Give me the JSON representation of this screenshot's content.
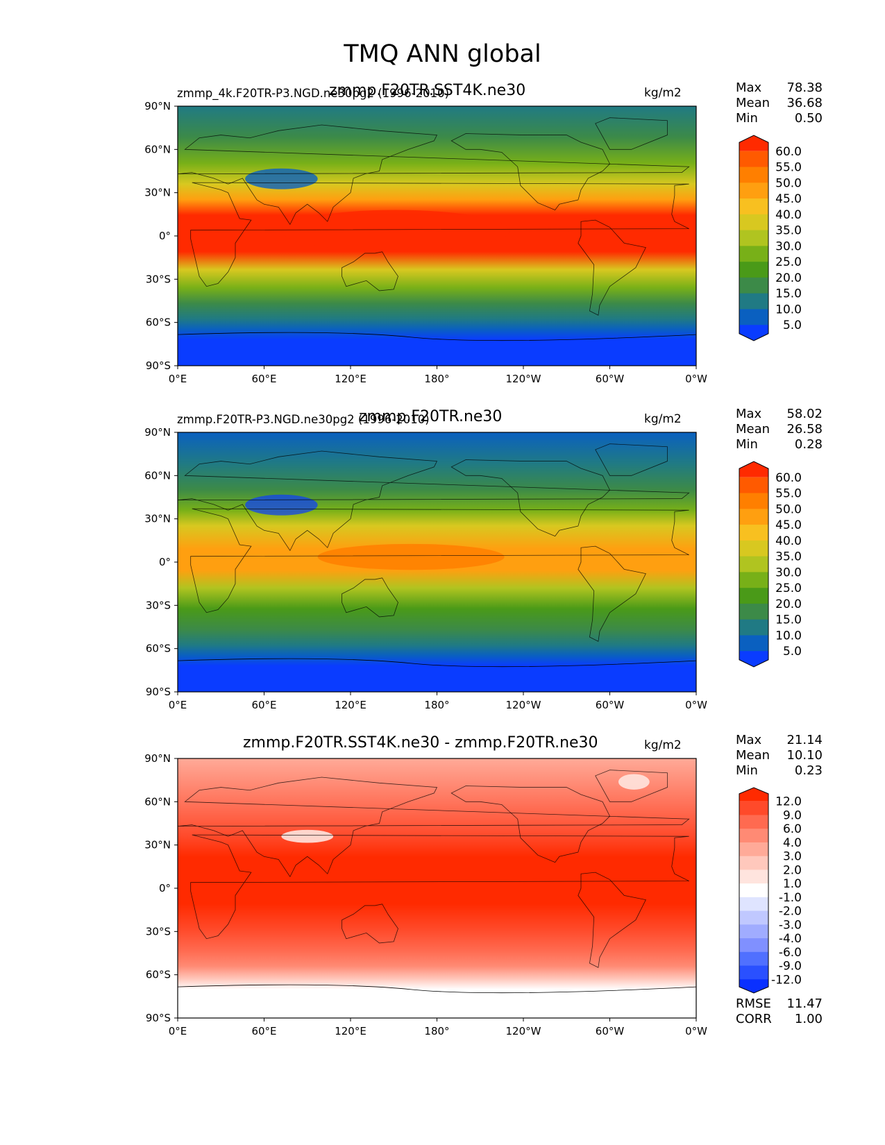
{
  "title": "TMQ ANN global",
  "panels": [
    {
      "id": "test",
      "small_title": "zmmp_4k.F20TR-P3.NGD.ne30pg2 (1996-2010)",
      "main_title": "zmmp.F20TR.SST4K.ne30",
      "units": "kg/m2",
      "stats": {
        "max_label": "Max",
        "max": "78.38",
        "mean_label": "Mean",
        "mean": "36.68",
        "min_label": "Min",
        "min": "0.50"
      },
      "colorbar": {
        "levels": [
          "60.0",
          "55.0",
          "50.0",
          "45.0",
          "40.0",
          "35.0",
          "30.0",
          "25.0",
          "20.0",
          "15.0",
          "10.0",
          "5.0"
        ],
        "colors": [
          "#ff2a00",
          "#ff5a00",
          "#ff7f00",
          "#ff9f10",
          "#f8c020",
          "#d8c820",
          "#b0c420",
          "#78b018",
          "#4a9a18",
          "#3c8a48",
          "#207a84",
          "#0a60c0",
          "#0a3cff"
        ]
      }
    },
    {
      "id": "ref",
      "small_title": "zmmp.F20TR-P3.NGD.ne30pg2 (1996-2010)",
      "main_title": "zmmp.F20TR.ne30",
      "units": "kg/m2",
      "stats": {
        "max_label": "Max",
        "max": "58.02",
        "mean_label": "Mean",
        "mean": "26.58",
        "min_label": "Min",
        "min": "0.28"
      },
      "colorbar": {
        "levels": [
          "60.0",
          "55.0",
          "50.0",
          "45.0",
          "40.0",
          "35.0",
          "30.0",
          "25.0",
          "20.0",
          "15.0",
          "10.0",
          "5.0"
        ],
        "colors": [
          "#ff2a00",
          "#ff5a00",
          "#ff7f00",
          "#ff9f10",
          "#f8c020",
          "#d8c820",
          "#b0c420",
          "#78b018",
          "#4a9a18",
          "#3c8a48",
          "#207a84",
          "#0a60c0",
          "#0a3cff"
        ]
      }
    },
    {
      "id": "diff",
      "small_title": "",
      "main_title": "zmmp.F20TR.SST4K.ne30 - zmmp.F20TR.ne30",
      "units": "kg/m2",
      "stats": {
        "max_label": "Max",
        "max": "21.14",
        "mean_label": "Mean",
        "mean": "10.10",
        "min_label": "Min",
        "min": "0.23"
      },
      "colorbar": {
        "levels": [
          "12.0",
          "9.0",
          "6.0",
          "4.0",
          "3.0",
          "2.0",
          "1.0",
          "-1.0",
          "-2.0",
          "-3.0",
          "-4.0",
          "-6.0",
          "-9.0",
          "-12.0"
        ],
        "colors": [
          "#ff2a00",
          "#ff4a2a",
          "#ff6a50",
          "#ff8a74",
          "#ffaa98",
          "#ffc8bc",
          "#ffe4de",
          "#ffffff",
          "#dfe4ff",
          "#c0c8ff",
          "#a0acff",
          "#8090ff",
          "#5070ff",
          "#2a50ff",
          "#0a30ff"
        ]
      }
    }
  ],
  "error_stats": {
    "rmse_label": "RMSE",
    "rmse": "11.47",
    "corr_label": "CORR",
    "corr": "1.00"
  },
  "axes": {
    "lat_ticks": [
      "90°N",
      "60°N",
      "30°N",
      "0°",
      "30°S",
      "60°S",
      "90°S"
    ],
    "lon_ticks": [
      "0°E",
      "60°E",
      "120°E",
      "180°",
      "120°W",
      "60°W",
      "0°W"
    ]
  },
  "chart_data": [
    {
      "type": "heatmap",
      "title": "zmmp.F20TR.SST4K.ne30",
      "variable": "TMQ",
      "season": "ANN",
      "units": "kg/m2",
      "stats": {
        "max": 78.38,
        "mean": 36.68,
        "min": 0.5
      },
      "zonal_profile": {
        "lat": [
          90,
          60,
          30,
          0,
          -30,
          -60,
          -90
        ],
        "value": [
          8,
          22,
          40,
          58,
          35,
          15,
          2
        ]
      },
      "contour_levels": [
        5,
        10,
        15,
        20,
        25,
        30,
        35,
        40,
        45,
        50,
        55,
        60
      ]
    },
    {
      "type": "heatmap",
      "title": "zmmp.F20TR.ne30",
      "variable": "TMQ",
      "season": "ANN",
      "units": "kg/m2",
      "stats": {
        "max": 58.02,
        "mean": 26.58,
        "min": 0.28
      },
      "zonal_profile": {
        "lat": [
          90,
          60,
          30,
          0,
          -30,
          -60,
          -90
        ],
        "value": [
          6,
          15,
          28,
          45,
          25,
          10,
          1.5
        ]
      },
      "contour_levels": [
        5,
        10,
        15,
        20,
        25,
        30,
        35,
        40,
        45,
        50,
        55,
        60
      ]
    },
    {
      "type": "heatmap",
      "title": "zmmp.F20TR.SST4K.ne30 - zmmp.F20TR.ne30",
      "variable": "TMQ",
      "season": "ANN",
      "units": "kg/m2",
      "stats": {
        "max": 21.14,
        "mean": 10.1,
        "min": 0.23,
        "rmse": 11.47,
        "corr": 1.0
      },
      "zonal_profile": {
        "lat": [
          90,
          60,
          30,
          0,
          -30,
          -60,
          -90
        ],
        "value": [
          2,
          6,
          11,
          15,
          10,
          5,
          0.5
        ]
      },
      "contour_levels": [
        -12,
        -9,
        -6,
        -4,
        -3,
        -2,
        -1,
        1,
        2,
        3,
        4,
        6,
        9,
        12
      ]
    }
  ]
}
